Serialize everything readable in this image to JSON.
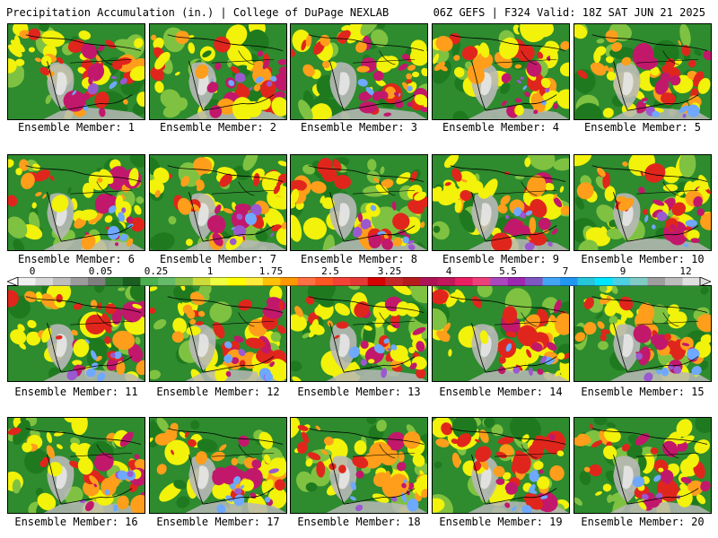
{
  "header": {
    "title_left": "Precipitation Accumulation (in.) | College of DuPage NEXLAB",
    "title_right": "06Z GEFS | F324 Valid: 18Z SAT JUN 21 2025"
  },
  "panels": [
    {
      "label": "Ensemble Member: 1"
    },
    {
      "label": "Ensemble Member: 2"
    },
    {
      "label": "Ensemble Member: 3"
    },
    {
      "label": "Ensemble Member: 4"
    },
    {
      "label": "Ensemble Member: 5"
    },
    {
      "label": "Ensemble Member: 6"
    },
    {
      "label": "Ensemble Member: 7"
    },
    {
      "label": "Ensemble Member: 8"
    },
    {
      "label": "Ensemble Member: 9"
    },
    {
      "label": "Ensemble Member: 10"
    },
    {
      "label": "Ensemble Member: 11"
    },
    {
      "label": "Ensemble Member: 12"
    },
    {
      "label": "Ensemble Member: 13"
    },
    {
      "label": "Ensemble Member: 14"
    },
    {
      "label": "Ensemble Member: 15"
    },
    {
      "label": "Ensemble Member: 16"
    },
    {
      "label": "Ensemble Member: 17"
    },
    {
      "label": "Ensemble Member: 18"
    },
    {
      "label": "Ensemble Member: 19"
    },
    {
      "label": "Ensemble Member: 20"
    }
  ],
  "colorbar": {
    "tick_labels": [
      "0",
      "0.05",
      "0.25",
      "1",
      "1.75",
      "2.5",
      "3.25",
      "4",
      "5.5",
      "7",
      "9",
      "12"
    ],
    "colors": [
      "#f0f0f0",
      "#d8d8d8",
      "#bdbdbd",
      "#9c9c9c",
      "#7f7f7f",
      "#2e7d32",
      "#1b5e20",
      "#4caf50",
      "#66bb6a",
      "#8bc34a",
      "#cddc39",
      "#eeff41",
      "#ffff00",
      "#ffeb3b",
      "#ffc107",
      "#ff9800",
      "#ff7043",
      "#ff5722",
      "#f44336",
      "#e53935",
      "#d50000",
      "#c62828",
      "#b71c1c",
      "#ad1457",
      "#c2185b",
      "#e91e63",
      "#ec407a",
      "#ab47bc",
      "#9c27b0",
      "#7e57c2",
      "#42a5f5",
      "#2196f3",
      "#26c6da",
      "#00e5ff",
      "#4dd0e1",
      "#80cbc4",
      "#9e9e9e",
      "#bdbdbd",
      "#e0e0e0"
    ]
  },
  "map_colors": {
    "land_base": "#2e8b2e",
    "ocean_dry": "#1f7a1f",
    "dry_gray": "#b8b8b8",
    "light": "#7fc241",
    "yellow": "#f2f20a",
    "orange": "#ff9e1a",
    "red": "#e0261c",
    "magenta": "#c2186b",
    "purple": "#9b59d0",
    "blue": "#6fa8ff",
    "outline": "#000000"
  }
}
